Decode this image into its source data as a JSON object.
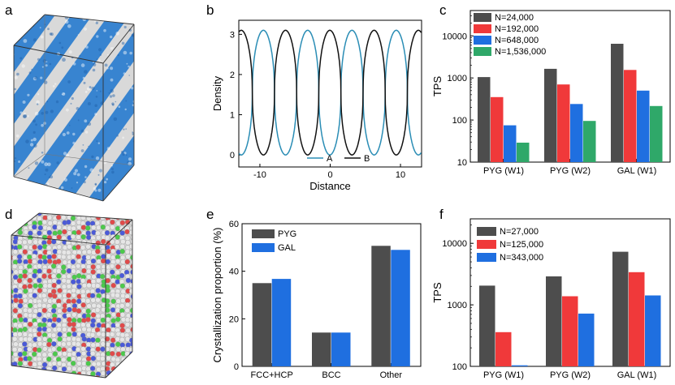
{
  "panel_letters": {
    "a": "a",
    "b": "b",
    "c": "c",
    "d": "d",
    "e": "e",
    "f": "f"
  },
  "colors": {
    "blue_phase": "#2f7fd0",
    "white_phase": "#d9d9d9",
    "bead_red": "#e04a4a",
    "bead_green": "#4cc94c",
    "bead_blue": "#4a5ad8",
    "bead_white": "#e6e6e6",
    "line_A": "#2a8db5",
    "line_B": "#111111",
    "bar_dark": "#4d4d4d",
    "bar_red": "#f0393a",
    "bar_blue": "#1f6fe0",
    "bar_green": "#2fa869"
  },
  "chart_data": [
    {
      "id": "b",
      "type": "line",
      "title": "",
      "xlabel": "Distance",
      "ylabel": "Density",
      "xlim": [
        -13,
        13
      ],
      "ylim": [
        -0.3,
        3.35
      ],
      "xticks": [
        -10,
        0,
        10
      ],
      "yticks": [
        0,
        1,
        2,
        3
      ],
      "legend_position": "bottom-center",
      "period": 6.3,
      "phase_A_peak": -9.5,
      "low": 0.0,
      "high": 3.1,
      "series": [
        {
          "name": "A",
          "color": "#2a8db5"
        },
        {
          "name": "B",
          "color": "#111111"
        }
      ]
    },
    {
      "id": "c",
      "type": "bar",
      "scale": "log",
      "ylabel": "TPS",
      "ylim": [
        10,
        40000
      ],
      "yticks": [
        10,
        100,
        1000,
        10000
      ],
      "categories": [
        "PYG (W1)",
        "PYG (W2)",
        "GAL (W1)"
      ],
      "legend_position": "top-left",
      "series": [
        {
          "name": "N=24,000",
          "color": "#4d4d4d",
          "values": [
            1050,
            1650,
            6500
          ]
        },
        {
          "name": "N=192,000",
          "color": "#f0393a",
          "values": [
            350,
            700,
            1550
          ]
        },
        {
          "name": "N=648,000",
          "color": "#1f6fe0",
          "values": [
            75,
            240,
            500
          ]
        },
        {
          "name": "N=1,536,000",
          "color": "#2fa869",
          "values": [
            29,
            95,
            215
          ]
        }
      ]
    },
    {
      "id": "e",
      "type": "bar",
      "scale": "linear",
      "ylabel": "Crystallization proportion (%)",
      "ylim": [
        0,
        60
      ],
      "yticks": [
        0,
        20,
        40,
        60
      ],
      "categories": [
        "FCC+HCP",
        "BCC",
        "Other"
      ],
      "legend_position": "top-left",
      "series": [
        {
          "name": "PYG",
          "color": "#4d4d4d",
          "values": [
            35,
            14.2,
            50.7
          ]
        },
        {
          "name": "GAL",
          "color": "#1f6fe0",
          "values": [
            36.8,
            14.2,
            49
          ]
        }
      ]
    },
    {
      "id": "f",
      "type": "bar",
      "scale": "log",
      "ylabel": "TPS",
      "ylim": [
        100,
        25000
      ],
      "yticks": [
        100,
        1000,
        10000
      ],
      "categories": [
        "PYG (W1)",
        "PYG (W2)",
        "GAL (W1)"
      ],
      "legend_position": "top-left",
      "series": [
        {
          "name": "N=27,000",
          "color": "#4d4d4d",
          "values": [
            2050,
            2900,
            7300
          ]
        },
        {
          "name": "N=125,000",
          "color": "#f0393a",
          "values": [
            360,
            1380,
            3400
          ]
        },
        {
          "name": "N=343,000",
          "color": "#1f6fe0",
          "values": [
            104,
            720,
            1420
          ]
        }
      ]
    }
  ]
}
